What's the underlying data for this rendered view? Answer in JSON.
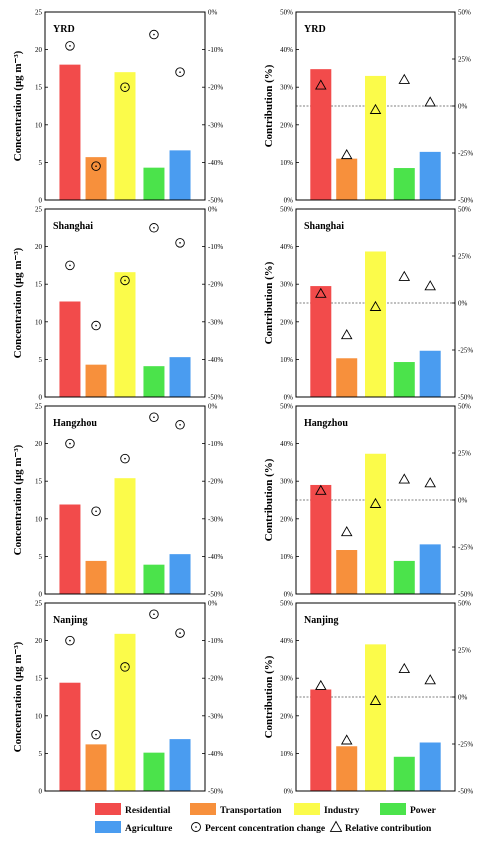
{
  "colors": {
    "Residential": "#f24b4b",
    "Transportation": "#f7903c",
    "Industry": "#fbfb4a",
    "Power": "#4be34b",
    "Agriculture": "#4a9cf0"
  },
  "legend": [
    {
      "label": "Residential",
      "kind": "swatch",
      "color": "#f24b4b"
    },
    {
      "label": "Transportation",
      "kind": "swatch",
      "color": "#f7903c"
    },
    {
      "label": "Industry",
      "kind": "swatch",
      "color": "#fbfb4a"
    },
    {
      "label": "Power",
      "kind": "swatch",
      "color": "#4be34b"
    },
    {
      "label": "Agriculture",
      "kind": "swatch",
      "color": "#4a9cf0"
    },
    {
      "label": "Percent concentration change",
      "kind": "circle-dot"
    },
    {
      "label": "Relative contribution",
      "kind": "triangle"
    }
  ],
  "chart_data": [
    {
      "type": "bar",
      "title": "YRD",
      "ylabel": "Concentration (μg m⁻³)",
      "categories": [
        "Residential",
        "Transportation",
        "Industry",
        "Power",
        "Agriculture"
      ],
      "values": [
        18.0,
        5.7,
        17.0,
        4.3,
        6.6
      ],
      "ylim": [
        0,
        25
      ],
      "yticks": [
        "0",
        "5",
        "10",
        "15",
        "20",
        "25"
      ],
      "y2ticks": [
        "0%",
        "-10%",
        "-20%",
        "-30%",
        "-40%",
        "-50%"
      ],
      "y2lim": [
        -50,
        0
      ],
      "markers": {
        "name": "Percent concentration change",
        "values": [
          -9.0,
          -41.0,
          -20.0,
          -6.0,
          -16.0
        ]
      }
    },
    {
      "type": "bar",
      "title": "YRD",
      "ylabel": "Contribution (%)",
      "categories": [
        "Residential",
        "Transportation",
        "Industry",
        "Power",
        "Agriculture"
      ],
      "values": [
        34.8,
        11.0,
        33.0,
        8.5,
        12.8
      ],
      "ylim": [
        0,
        50
      ],
      "yticks": [
        "0%",
        "10%",
        "20%",
        "30%",
        "40%",
        "50%"
      ],
      "y2ticks": [
        "-50%",
        "-25%",
        "0%",
        "25%",
        "50%"
      ],
      "y2lim": [
        -50,
        50
      ],
      "markers": {
        "name": "Relative contribution",
        "values": [
          11.0,
          -26.0,
          -2.0,
          14.0,
          2.0
        ]
      }
    },
    {
      "type": "bar",
      "title": "Shanghai",
      "ylabel": "Concentration (μg m⁻³)",
      "categories": [
        "Residential",
        "Transportation",
        "Industry",
        "Power",
        "Agriculture"
      ],
      "values": [
        12.7,
        4.3,
        16.6,
        4.1,
        5.3
      ],
      "ylim": [
        0,
        25
      ],
      "yticks": [
        "0",
        "5",
        "10",
        "15",
        "20",
        "25"
      ],
      "y2ticks": [
        "0%",
        "-10%",
        "-20%",
        "-30%",
        "-40%",
        "-50%"
      ],
      "y2lim": [
        -50,
        0
      ],
      "markers": {
        "name": "Percent concentration change",
        "values": [
          -15.0,
          -31.0,
          -19.0,
          -5.0,
          -9.0
        ]
      }
    },
    {
      "type": "bar",
      "title": "Shanghai",
      "ylabel": "Contribution (%)",
      "categories": [
        "Residential",
        "Transportation",
        "Industry",
        "Power",
        "Agriculture"
      ],
      "values": [
        29.5,
        10.3,
        38.7,
        9.3,
        12.3
      ],
      "ylim": [
        0,
        50
      ],
      "yticks": [
        "0%",
        "10%",
        "20%",
        "30%",
        "40%",
        "50%"
      ],
      "y2ticks": [
        "-50%",
        "-25%",
        "0%",
        "25%",
        "50%"
      ],
      "y2lim": [
        -50,
        50
      ],
      "markers": {
        "name": "Relative contribution",
        "values": [
          5.0,
          -17.0,
          -2.0,
          14.0,
          9.0
        ]
      }
    },
    {
      "type": "bar",
      "title": "Hangzhou",
      "ylabel": "Concentration (μg m⁻³)",
      "categories": [
        "Residential",
        "Transportation",
        "Industry",
        "Power",
        "Agriculture"
      ],
      "values": [
        11.9,
        4.4,
        15.4,
        3.9,
        5.3
      ],
      "ylim": [
        0,
        25
      ],
      "yticks": [
        "0",
        "5",
        "10",
        "15",
        "20",
        "25"
      ],
      "y2ticks": [
        "0%",
        "-10%",
        "-20%",
        "-30%",
        "-40%",
        "-50%"
      ],
      "y2lim": [
        -50,
        0
      ],
      "markers": {
        "name": "Percent concentration change",
        "values": [
          -10.0,
          -28.0,
          -14.0,
          -3.0,
          -5.0
        ]
      }
    },
    {
      "type": "bar",
      "title": "Hangzhou",
      "ylabel": "Contribution (%)",
      "categories": [
        "Residential",
        "Transportation",
        "Industry",
        "Power",
        "Agriculture"
      ],
      "values": [
        29.0,
        11.7,
        37.3,
        8.8,
        13.2
      ],
      "ylim": [
        0,
        50
      ],
      "yticks": [
        "0%",
        "10%",
        "20%",
        "30%",
        "40%",
        "50%"
      ],
      "y2ticks": [
        "-50%",
        "-25%",
        "0%",
        "25%",
        "50%"
      ],
      "y2lim": [
        -50,
        50
      ],
      "markers": {
        "name": "Relative contribution",
        "values": [
          5.0,
          -17.0,
          -2.0,
          11.0,
          9.0
        ]
      }
    },
    {
      "type": "bar",
      "title": "Nanjing",
      "ylabel": "Concentration (μg m⁻³)",
      "categories": [
        "Residential",
        "Transportation",
        "Industry",
        "Power",
        "Agriculture"
      ],
      "values": [
        14.4,
        6.2,
        20.9,
        5.1,
        6.9
      ],
      "ylim": [
        0,
        25
      ],
      "yticks": [
        "0",
        "5",
        "10",
        "15",
        "20",
        "25"
      ],
      "y2ticks": [
        "0%",
        "-10%",
        "-20%",
        "-30%",
        "-40%",
        "-50%"
      ],
      "y2lim": [
        -50,
        0
      ],
      "markers": {
        "name": "Percent concentration change",
        "values": [
          -10.0,
          -35.0,
          -17.0,
          -3.0,
          -8.0
        ]
      }
    },
    {
      "type": "bar",
      "title": "Nanjing",
      "ylabel": "Contribution (%)",
      "categories": [
        "Residential",
        "Transportation",
        "Industry",
        "Power",
        "Agriculture"
      ],
      "values": [
        27.0,
        11.9,
        39.0,
        9.1,
        12.9
      ],
      "ylim": [
        0,
        50
      ],
      "yticks": [
        "0%",
        "10%",
        "20%",
        "30%",
        "40%",
        "50%"
      ],
      "y2ticks": [
        "-50%",
        "-25%",
        "0%",
        "25%",
        "50%"
      ],
      "y2lim": [
        -50,
        50
      ],
      "markers": {
        "name": "Relative contribution",
        "values": [
          6.0,
          -23.0,
          -2.0,
          15.0,
          9.0
        ]
      }
    }
  ]
}
